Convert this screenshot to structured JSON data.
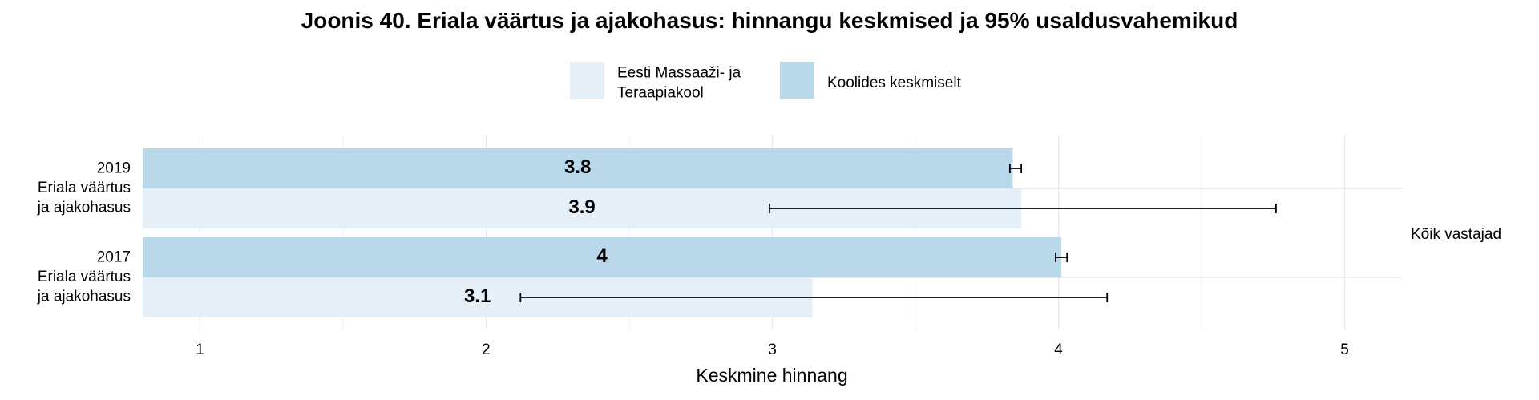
{
  "chart_data": {
    "type": "bar",
    "title": "Joonis 40. Eriala väärtus ja ajakohasus: hinnangu keskmised ja 95% usaldusvahemikud",
    "x_label": "Keskmine hinnang",
    "facet_label": "Kõik vastajad",
    "categories": [
      "2019\nEriala väärtus\nja ajakohasus",
      "2017\nEriala väärtus\nja ajakohasus"
    ],
    "series": [
      {
        "name": "Eesti Massaaži- ja\nTeraapiakool",
        "color": "#e4eff8",
        "values": [
          3.87,
          3.14
        ],
        "value_labels": [
          "3.9",
          "3.1"
        ],
        "ci_low": [
          2.99,
          2.12
        ],
        "ci_high": [
          4.76,
          4.17
        ]
      },
      {
        "name": "Koolides keskmiselt",
        "color": "#b9d9ea",
        "values": [
          3.84,
          4.01
        ],
        "value_labels": [
          "3.8",
          "4"
        ],
        "ci_low": [
          3.83,
          3.99
        ],
        "ci_high": [
          3.87,
          4.03
        ]
      }
    ],
    "xlim": [
      0.8,
      5.2
    ],
    "xticks": [
      1,
      2,
      3,
      4,
      5
    ],
    "grid": true
  }
}
